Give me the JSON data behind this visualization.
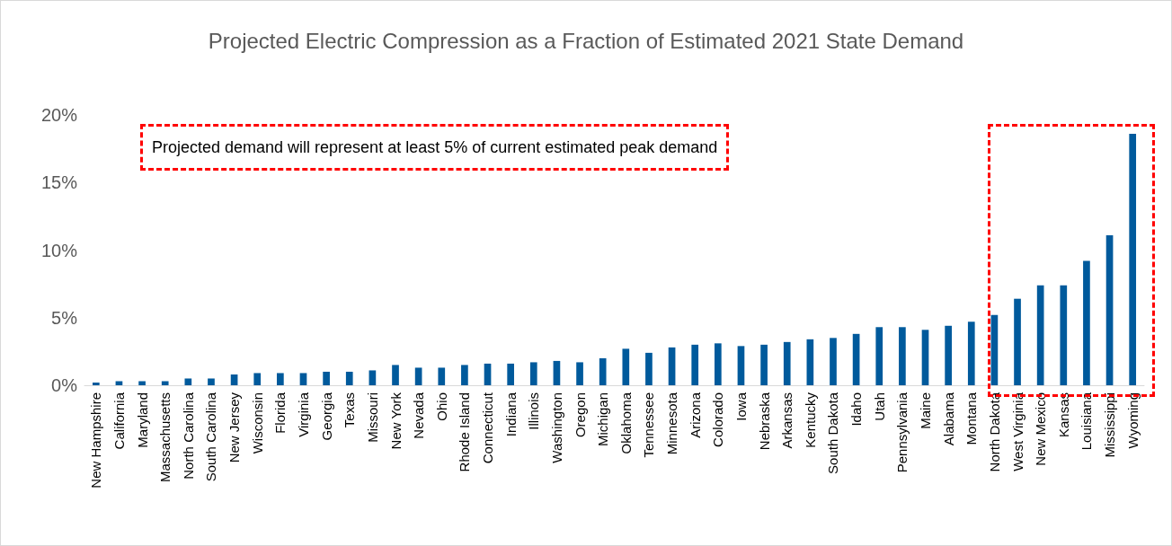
{
  "chart_data": {
    "type": "bar",
    "title": "Projected Electric Compression as a Fraction of Estimated 2021 State Demand",
    "categories": [
      "New Hampshire",
      "California",
      "Maryland",
      "Massachusetts",
      "North Carolina",
      "South Carolina",
      "New Jersey",
      "Wisconsin",
      "Florida",
      "Virginia",
      "Georgia",
      "Texas",
      "Missouri",
      "New York",
      "Nevada",
      "Ohio",
      "Rhode Island",
      "Connecticut",
      "Indiana",
      "Illinois",
      "Washington",
      "Oregon",
      "Michigan",
      "Oklahoma",
      "Tennessee",
      "Minnesota",
      "Arizona",
      "Colorado",
      "Iowa",
      "Nebraska",
      "Arkansas",
      "Kentucky",
      "South Dakota",
      "Idaho",
      "Utah",
      "Pennsylvania",
      "Maine",
      "Alabama",
      "Montana",
      "North Dakota",
      "West Virginia",
      "New Mexico",
      "Kansas",
      "Louisiana",
      "Mississippi",
      "Wyoming"
    ],
    "values": [
      0.2,
      0.3,
      0.3,
      0.3,
      0.5,
      0.5,
      0.8,
      0.9,
      0.9,
      0.9,
      1.0,
      1.0,
      1.1,
      1.5,
      1.3,
      1.3,
      1.5,
      1.6,
      1.6,
      1.7,
      1.8,
      1.7,
      2.0,
      2.7,
      2.4,
      2.8,
      3.0,
      3.1,
      2.9,
      3.0,
      3.2,
      3.4,
      3.5,
      3.8,
      4.3,
      4.3,
      4.1,
      4.4,
      4.7,
      5.2,
      6.4,
      7.4,
      7.4,
      9.2,
      11.1,
      18.6
    ],
    "color": "#005a9c",
    "ylim": [
      0,
      20
    ],
    "yticks": [
      {
        "value": 0,
        "label": "0%"
      },
      {
        "value": 5,
        "label": "5%"
      },
      {
        "value": 10,
        "label": "10%"
      },
      {
        "value": 15,
        "label": "15%"
      },
      {
        "value": 20,
        "label": "20%"
      }
    ],
    "grid": false,
    "annotations": [
      "Projected demand will represent at least 5% of current estimated peak demand"
    ]
  }
}
